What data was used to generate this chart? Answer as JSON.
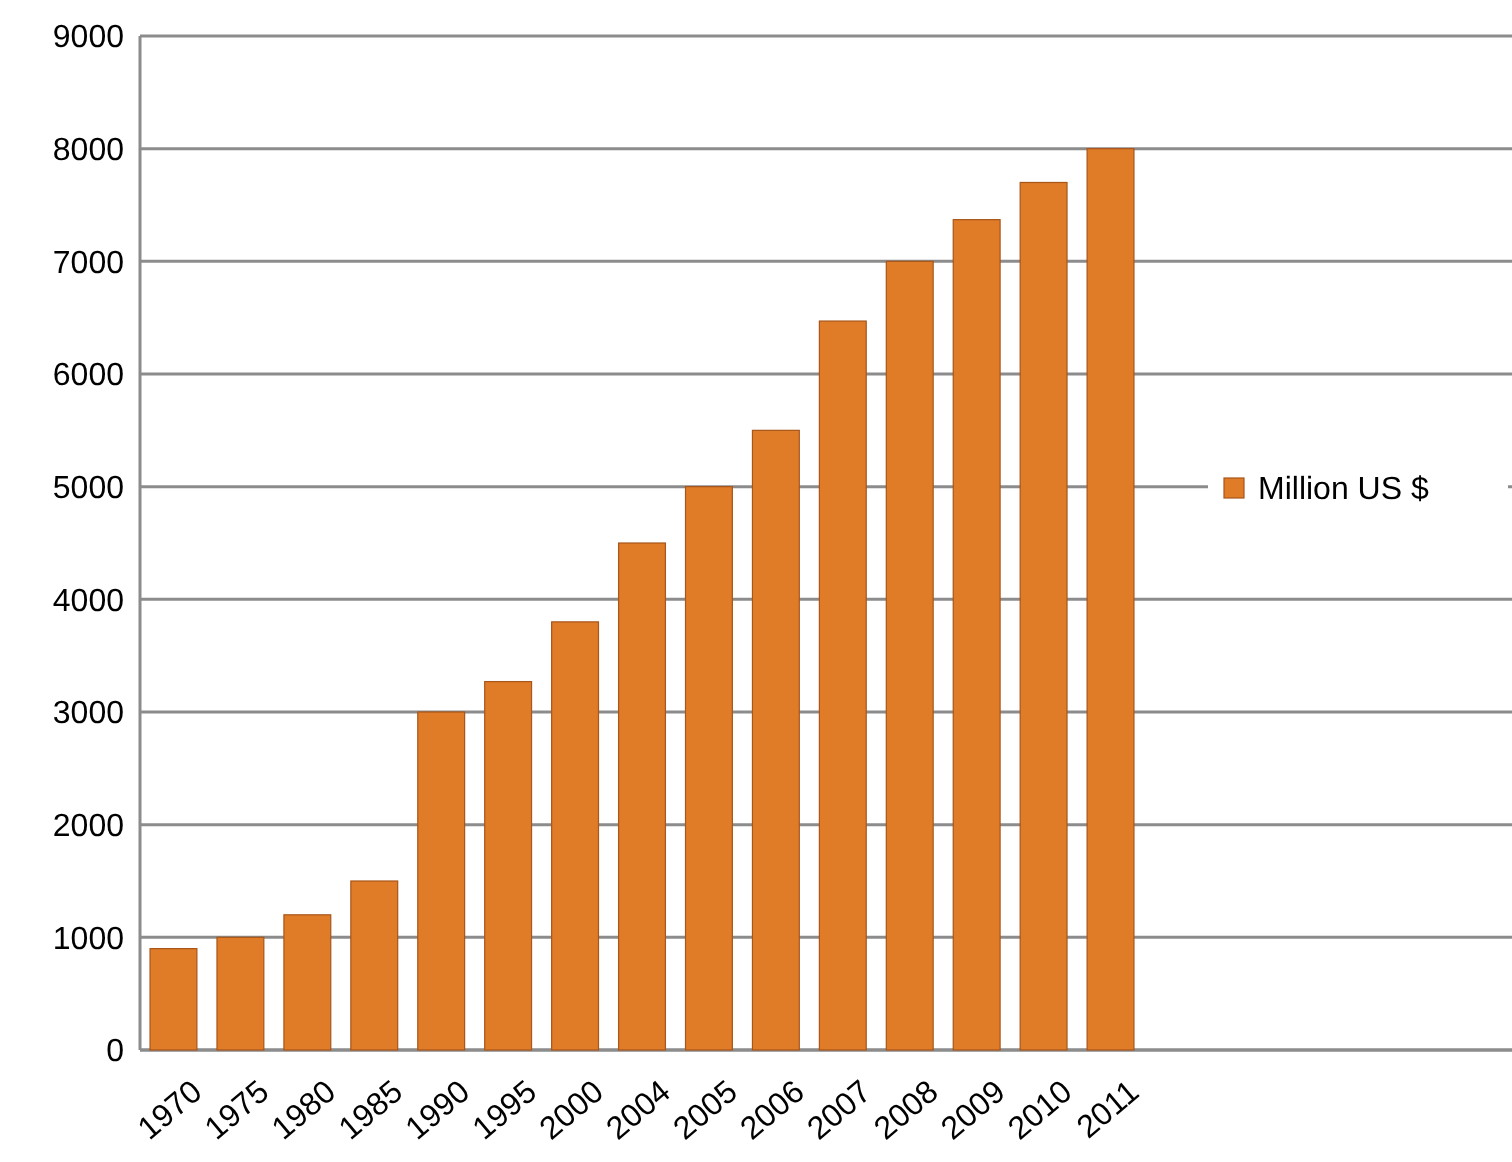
{
  "chart_data": {
    "type": "bar",
    "categories": [
      "1970",
      "1975",
      "1980",
      "1985",
      "1990",
      "1995",
      "2000",
      "2004",
      "2005",
      "2006",
      "2007",
      "2008",
      "2009",
      "2010",
      "2011"
    ],
    "series": [
      {
        "name": "Million US $",
        "color": "#e07b27",
        "values": [
          900,
          1000,
          1200,
          1500,
          3000,
          3270,
          3800,
          4500,
          5000,
          5500,
          6470,
          7000,
          7370,
          7700,
          8000
        ]
      }
    ],
    "ylim": [
      0,
      9000
    ],
    "yticks": [
      0,
      1000,
      2000,
      3000,
      4000,
      5000,
      6000,
      7000,
      8000,
      9000
    ],
    "grid": "y",
    "legend": "right"
  }
}
